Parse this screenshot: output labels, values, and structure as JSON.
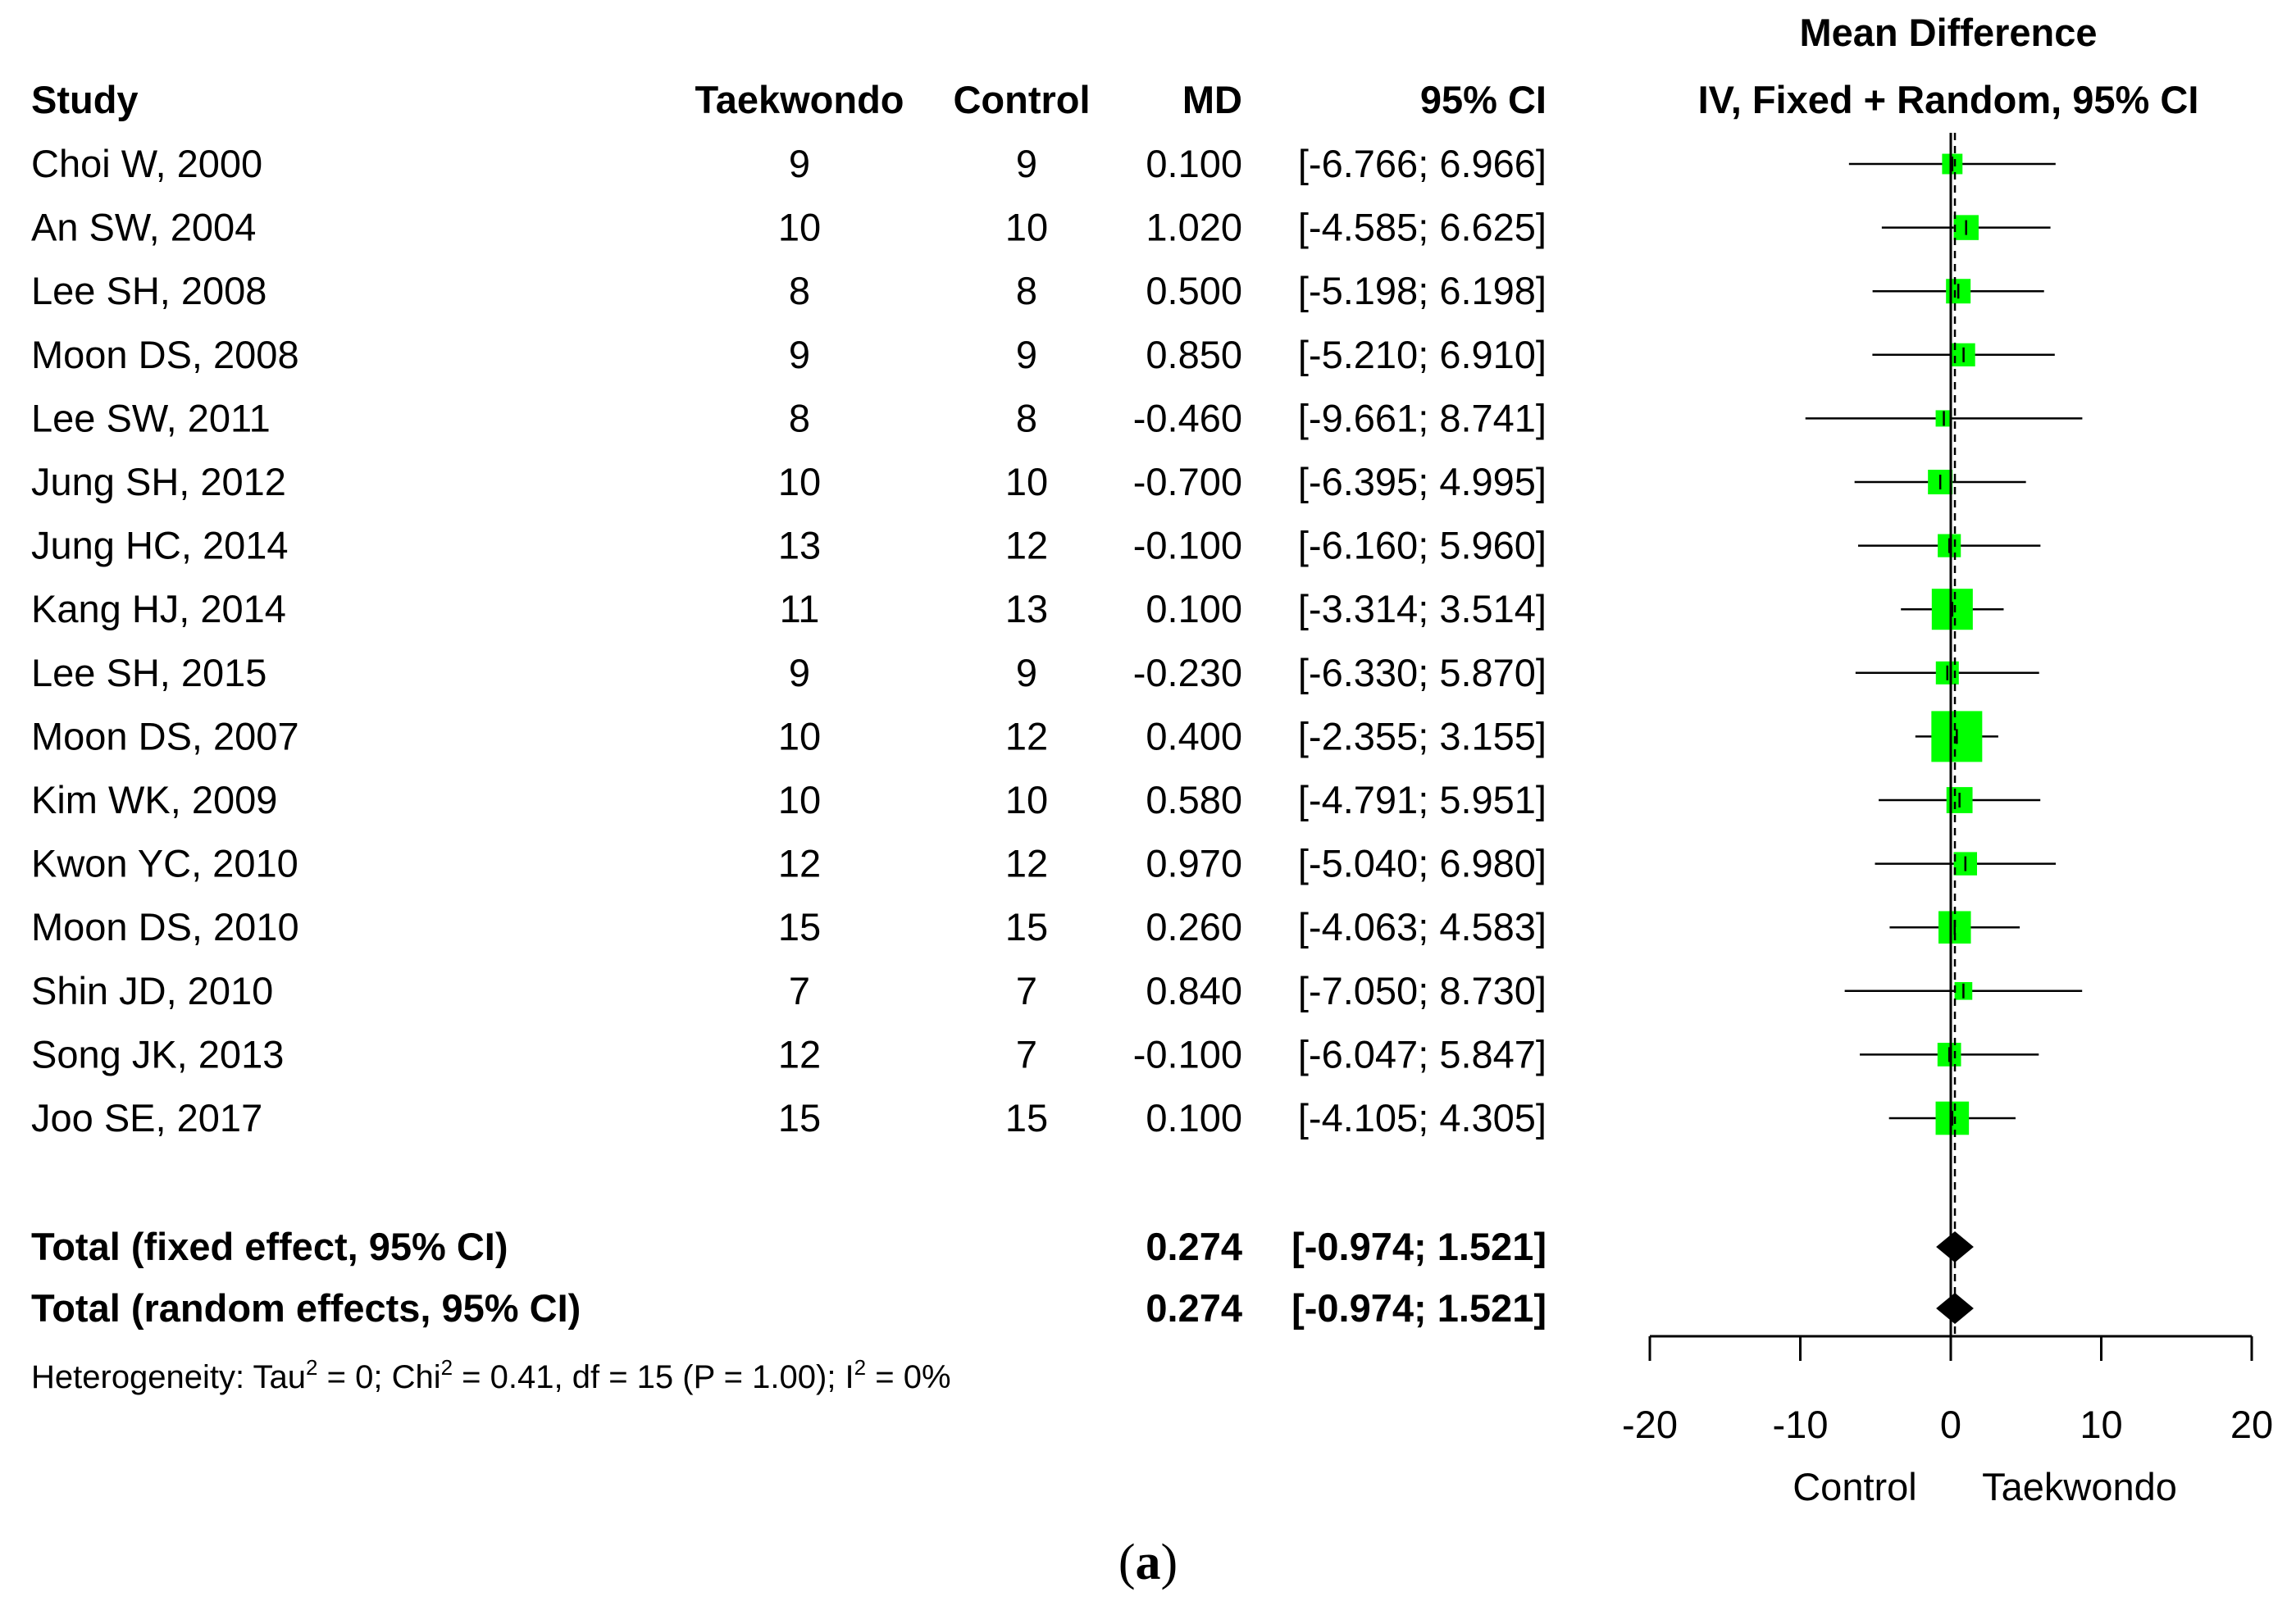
{
  "chart_data": {
    "type": "forest",
    "header": {
      "study": "Study",
      "treatment": "Taekwondo",
      "control": "Control",
      "md": "MD",
      "ci": "95% CI",
      "plot_title_line1": "Mean Difference",
      "plot_title_line2": "IV, Fixed + Random, 95% CI"
    },
    "studies": [
      {
        "name": "Choi W, 2000",
        "treatment_n": "9",
        "control_n": "9",
        "md_text": "0.100",
        "ci_text": "[-6.766; 6.966]",
        "md": 0.1,
        "lower": -6.766,
        "upper": 6.966
      },
      {
        "name": "An SW, 2004",
        "treatment_n": "10",
        "control_n": "10",
        "md_text": "1.020",
        "ci_text": "[-4.585; 6.625]",
        "md": 1.02,
        "lower": -4.585,
        "upper": 6.625
      },
      {
        "name": "Lee SH, 2008",
        "treatment_n": "8",
        "control_n": "8",
        "md_text": "0.500",
        "ci_text": "[-5.198; 6.198]",
        "md": 0.5,
        "lower": -5.198,
        "upper": 6.198
      },
      {
        "name": "Moon DS, 2008",
        "treatment_n": "9",
        "control_n": "9",
        "md_text": "0.850",
        "ci_text": "[-5.210; 6.910]",
        "md": 0.85,
        "lower": -5.21,
        "upper": 6.91
      },
      {
        "name": "Lee SW, 2011",
        "treatment_n": "8",
        "control_n": "8",
        "md_text": "-0.460",
        "ci_text": "[-9.661; 8.741]",
        "md": -0.46,
        "lower": -9.661,
        "upper": 8.741
      },
      {
        "name": "Jung SH, 2012",
        "treatment_n": "10",
        "control_n": "10",
        "md_text": "-0.700",
        "ci_text": "[-6.395; 4.995]",
        "md": -0.7,
        "lower": -6.395,
        "upper": 4.995
      },
      {
        "name": "Jung HC, 2014",
        "treatment_n": "13",
        "control_n": "12",
        "md_text": "-0.100",
        "ci_text": "[-6.160; 5.960]",
        "md": -0.1,
        "lower": -6.16,
        "upper": 5.96
      },
      {
        "name": "Kang HJ, 2014",
        "treatment_n": "11",
        "control_n": "13",
        "md_text": "0.100",
        "ci_text": "[-3.314; 3.514]",
        "md": 0.1,
        "lower": -3.314,
        "upper": 3.514
      },
      {
        "name": "Lee SH, 2015",
        "treatment_n": "9",
        "control_n": "9",
        "md_text": "-0.230",
        "ci_text": "[-6.330; 5.870]",
        "md": -0.23,
        "lower": -6.33,
        "upper": 5.87
      },
      {
        "name": "Moon DS, 2007",
        "treatment_n": "10",
        "control_n": "12",
        "md_text": "0.400",
        "ci_text": "[-2.355; 3.155]",
        "md": 0.4,
        "lower": -2.355,
        "upper": 3.155
      },
      {
        "name": "Kim WK, 2009",
        "treatment_n": "10",
        "control_n": "10",
        "md_text": "0.580",
        "ci_text": "[-4.791; 5.951]",
        "md": 0.58,
        "lower": -4.791,
        "upper": 5.951
      },
      {
        "name": "Kwon YC, 2010",
        "treatment_n": "12",
        "control_n": "12",
        "md_text": "0.970",
        "ci_text": "[-5.040; 6.980]",
        "md": 0.97,
        "lower": -5.04,
        "upper": 6.98
      },
      {
        "name": "Moon DS, 2010",
        "treatment_n": "15",
        "control_n": "15",
        "md_text": "0.260",
        "ci_text": "[-4.063; 4.583]",
        "md": 0.26,
        "lower": -4.063,
        "upper": 4.583
      },
      {
        "name": "Shin JD, 2010",
        "treatment_n": "7",
        "control_n": "7",
        "md_text": "0.840",
        "ci_text": "[-7.050; 8.730]",
        "md": 0.84,
        "lower": -7.05,
        "upper": 8.73
      },
      {
        "name": "Song JK, 2013",
        "treatment_n": "12",
        "control_n": "7",
        "md_text": "-0.100",
        "ci_text": "[-6.047; 5.847]",
        "md": -0.1,
        "lower": -6.047,
        "upper": 5.847
      },
      {
        "name": "Joo SE, 2017",
        "treatment_n": "15",
        "control_n": "15",
        "md_text": "0.100",
        "ci_text": "[-4.105; 4.305]",
        "md": 0.1,
        "lower": -4.105,
        "upper": 4.305
      }
    ],
    "totals": [
      {
        "name": "Total (fixed effect, 95% CI)",
        "md_text": "0.274",
        "ci_text": "[-0.974; 1.521]",
        "md": 0.274,
        "lower": -0.974,
        "upper": 1.521
      },
      {
        "name": "Total (random effects, 95% CI)",
        "md_text": "0.274",
        "ci_text": "[-0.974; 1.521]",
        "md": 0.274,
        "lower": -0.974,
        "upper": 1.521
      }
    ],
    "heterogeneity": {
      "prefix": "Heterogeneity: Tau",
      "sup1": "2",
      "mid1": " = 0; Chi",
      "sup2": "2",
      "mid2": " = 0.41, df = 15 (P = 1.00); I",
      "sup3": "2",
      "suffix": " = 0%"
    },
    "x_axis": {
      "range": [
        -20,
        20
      ],
      "ticks": [
        -20,
        -10,
        0,
        10,
        20
      ],
      "tick_labels": [
        "-20",
        "-10",
        "0",
        "10",
        "20"
      ],
      "label_left": "Control",
      "label_right": "Taekwondo"
    },
    "colors": {
      "square": "#00ff00",
      "diamond": "#000000",
      "line": "#000000"
    },
    "caption": "(",
    "caption_letter": "a",
    "caption_end": ")"
  }
}
